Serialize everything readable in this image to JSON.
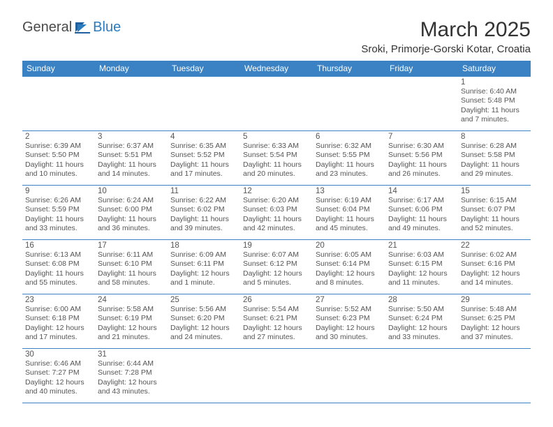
{
  "brand": {
    "general": "General",
    "blue": "Blue"
  },
  "title": "March 2025",
  "location": "Sroki, Primorje-Gorski Kotar, Croatia",
  "colors": {
    "header_bg": "#3b82c4",
    "header_text": "#ffffff",
    "border": "#3b82c4",
    "text": "#555555",
    "brand_blue": "#2b7bbf"
  },
  "dayNames": [
    "Sunday",
    "Monday",
    "Tuesday",
    "Wednesday",
    "Thursday",
    "Friday",
    "Saturday"
  ],
  "weeks": [
    [
      null,
      null,
      null,
      null,
      null,
      null,
      {
        "n": "1",
        "sr": "Sunrise: 6:40 AM",
        "ss": "Sunset: 5:48 PM",
        "dl": "Daylight: 11 hours and 7 minutes."
      }
    ],
    [
      {
        "n": "2",
        "sr": "Sunrise: 6:39 AM",
        "ss": "Sunset: 5:50 PM",
        "dl": "Daylight: 11 hours and 10 minutes."
      },
      {
        "n": "3",
        "sr": "Sunrise: 6:37 AM",
        "ss": "Sunset: 5:51 PM",
        "dl": "Daylight: 11 hours and 14 minutes."
      },
      {
        "n": "4",
        "sr": "Sunrise: 6:35 AM",
        "ss": "Sunset: 5:52 PM",
        "dl": "Daylight: 11 hours and 17 minutes."
      },
      {
        "n": "5",
        "sr": "Sunrise: 6:33 AM",
        "ss": "Sunset: 5:54 PM",
        "dl": "Daylight: 11 hours and 20 minutes."
      },
      {
        "n": "6",
        "sr": "Sunrise: 6:32 AM",
        "ss": "Sunset: 5:55 PM",
        "dl": "Daylight: 11 hours and 23 minutes."
      },
      {
        "n": "7",
        "sr": "Sunrise: 6:30 AM",
        "ss": "Sunset: 5:56 PM",
        "dl": "Daylight: 11 hours and 26 minutes."
      },
      {
        "n": "8",
        "sr": "Sunrise: 6:28 AM",
        "ss": "Sunset: 5:58 PM",
        "dl": "Daylight: 11 hours and 29 minutes."
      }
    ],
    [
      {
        "n": "9",
        "sr": "Sunrise: 6:26 AM",
        "ss": "Sunset: 5:59 PM",
        "dl": "Daylight: 11 hours and 33 minutes."
      },
      {
        "n": "10",
        "sr": "Sunrise: 6:24 AM",
        "ss": "Sunset: 6:00 PM",
        "dl": "Daylight: 11 hours and 36 minutes."
      },
      {
        "n": "11",
        "sr": "Sunrise: 6:22 AM",
        "ss": "Sunset: 6:02 PM",
        "dl": "Daylight: 11 hours and 39 minutes."
      },
      {
        "n": "12",
        "sr": "Sunrise: 6:20 AM",
        "ss": "Sunset: 6:03 PM",
        "dl": "Daylight: 11 hours and 42 minutes."
      },
      {
        "n": "13",
        "sr": "Sunrise: 6:19 AM",
        "ss": "Sunset: 6:04 PM",
        "dl": "Daylight: 11 hours and 45 minutes."
      },
      {
        "n": "14",
        "sr": "Sunrise: 6:17 AM",
        "ss": "Sunset: 6:06 PM",
        "dl": "Daylight: 11 hours and 49 minutes."
      },
      {
        "n": "15",
        "sr": "Sunrise: 6:15 AM",
        "ss": "Sunset: 6:07 PM",
        "dl": "Daylight: 11 hours and 52 minutes."
      }
    ],
    [
      {
        "n": "16",
        "sr": "Sunrise: 6:13 AM",
        "ss": "Sunset: 6:08 PM",
        "dl": "Daylight: 11 hours and 55 minutes."
      },
      {
        "n": "17",
        "sr": "Sunrise: 6:11 AM",
        "ss": "Sunset: 6:10 PM",
        "dl": "Daylight: 11 hours and 58 minutes."
      },
      {
        "n": "18",
        "sr": "Sunrise: 6:09 AM",
        "ss": "Sunset: 6:11 PM",
        "dl": "Daylight: 12 hours and 1 minute."
      },
      {
        "n": "19",
        "sr": "Sunrise: 6:07 AM",
        "ss": "Sunset: 6:12 PM",
        "dl": "Daylight: 12 hours and 5 minutes."
      },
      {
        "n": "20",
        "sr": "Sunrise: 6:05 AM",
        "ss": "Sunset: 6:14 PM",
        "dl": "Daylight: 12 hours and 8 minutes."
      },
      {
        "n": "21",
        "sr": "Sunrise: 6:03 AM",
        "ss": "Sunset: 6:15 PM",
        "dl": "Daylight: 12 hours and 11 minutes."
      },
      {
        "n": "22",
        "sr": "Sunrise: 6:02 AM",
        "ss": "Sunset: 6:16 PM",
        "dl": "Daylight: 12 hours and 14 minutes."
      }
    ],
    [
      {
        "n": "23",
        "sr": "Sunrise: 6:00 AM",
        "ss": "Sunset: 6:18 PM",
        "dl": "Daylight: 12 hours and 17 minutes."
      },
      {
        "n": "24",
        "sr": "Sunrise: 5:58 AM",
        "ss": "Sunset: 6:19 PM",
        "dl": "Daylight: 12 hours and 21 minutes."
      },
      {
        "n": "25",
        "sr": "Sunrise: 5:56 AM",
        "ss": "Sunset: 6:20 PM",
        "dl": "Daylight: 12 hours and 24 minutes."
      },
      {
        "n": "26",
        "sr": "Sunrise: 5:54 AM",
        "ss": "Sunset: 6:21 PM",
        "dl": "Daylight: 12 hours and 27 minutes."
      },
      {
        "n": "27",
        "sr": "Sunrise: 5:52 AM",
        "ss": "Sunset: 6:23 PM",
        "dl": "Daylight: 12 hours and 30 minutes."
      },
      {
        "n": "28",
        "sr": "Sunrise: 5:50 AM",
        "ss": "Sunset: 6:24 PM",
        "dl": "Daylight: 12 hours and 33 minutes."
      },
      {
        "n": "29",
        "sr": "Sunrise: 5:48 AM",
        "ss": "Sunset: 6:25 PM",
        "dl": "Daylight: 12 hours and 37 minutes."
      }
    ],
    [
      {
        "n": "30",
        "sr": "Sunrise: 6:46 AM",
        "ss": "Sunset: 7:27 PM",
        "dl": "Daylight: 12 hours and 40 minutes."
      },
      {
        "n": "31",
        "sr": "Sunrise: 6:44 AM",
        "ss": "Sunset: 7:28 PM",
        "dl": "Daylight: 12 hours and 43 minutes."
      },
      null,
      null,
      null,
      null,
      null
    ]
  ]
}
